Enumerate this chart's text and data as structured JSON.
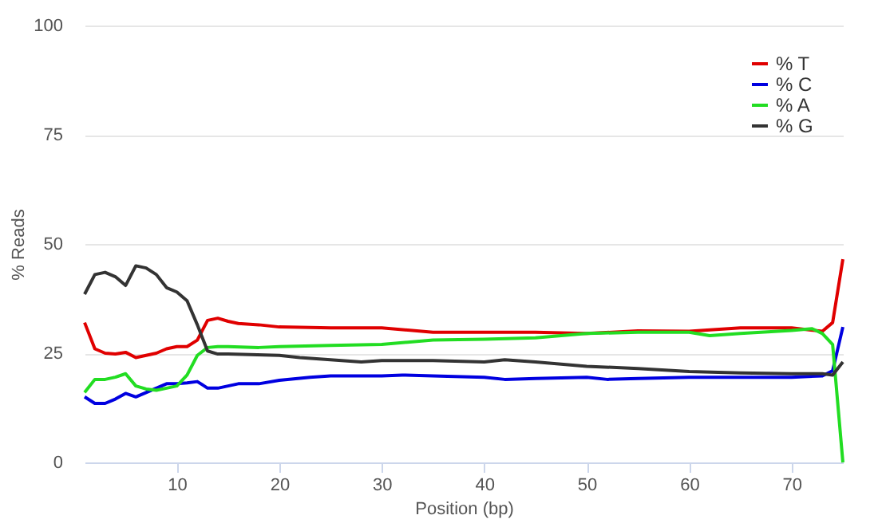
{
  "chart_data": {
    "type": "line",
    "xlabel": "Position (bp)",
    "ylabel": "% Reads",
    "xlim": [
      1,
      75
    ],
    "xticks": [
      10,
      20,
      30,
      40,
      50,
      60,
      70
    ],
    "ylim": [
      0,
      100
    ],
    "yticks": [
      0,
      25,
      50,
      75,
      100
    ],
    "grid": "y",
    "legend": "top right",
    "marker": "none",
    "line_style": "solid",
    "series": [
      {
        "name": "% T",
        "color": "#e00000",
        "x": [
          1,
          2,
          3,
          4,
          5,
          6,
          7,
          8,
          9,
          10,
          11,
          12,
          13,
          14,
          15,
          16,
          18,
          20,
          25,
          30,
          35,
          40,
          45,
          50,
          55,
          60,
          65,
          70,
          73,
          74,
          75
        ],
        "values": [
          32,
          26,
          25,
          24.8,
          25.2,
          24,
          24.5,
          25,
          26,
          26.5,
          26.5,
          28,
          32.5,
          33,
          32.3,
          31.8,
          31.5,
          31,
          30.8,
          30.8,
          29.8,
          29.8,
          29.8,
          29.5,
          30.1,
          30,
          30.8,
          30.8,
          30,
          32,
          46.5
        ]
      },
      {
        "name": "% C",
        "color": "#0000e0",
        "x": [
          1,
          2,
          3,
          4,
          5,
          6,
          7,
          8,
          9,
          10,
          11,
          12,
          13,
          14,
          15,
          16,
          18,
          20,
          23,
          25,
          30,
          32,
          35,
          40,
          42,
          45,
          50,
          52,
          55,
          60,
          65,
          70,
          73,
          74,
          75
        ],
        "values": [
          15,
          13.5,
          13.5,
          14.5,
          15.8,
          15,
          16,
          17,
          18,
          18,
          18.2,
          18.5,
          17,
          17,
          17.5,
          18,
          18,
          18.8,
          19.5,
          19.8,
          19.8,
          20,
          19.8,
          19.5,
          19,
          19.2,
          19.5,
          19,
          19.2,
          19.5,
          19.5,
          19.5,
          19.8,
          21,
          31
        ]
      },
      {
        "name": "% A",
        "color": "#22dd22",
        "x": [
          1,
          2,
          3,
          4,
          5,
          6,
          7,
          8,
          9,
          10,
          11,
          12,
          13,
          14,
          15,
          18,
          20,
          25,
          30,
          35,
          40,
          45,
          50,
          55,
          60,
          62,
          65,
          70,
          72,
          73,
          74,
          75
        ],
        "values": [
          16,
          19,
          19,
          19.5,
          20.3,
          17.5,
          16.8,
          16.5,
          17,
          17.5,
          20,
          24.5,
          26.3,
          26.5,
          26.5,
          26.3,
          26.5,
          26.8,
          27,
          28,
          28.2,
          28.5,
          29.5,
          29.8,
          29.8,
          29,
          29.5,
          30.2,
          30.6,
          29.5,
          27,
          0
        ]
      },
      {
        "name": "% G",
        "color": "#333333",
        "x": [
          1,
          2,
          3,
          4,
          5,
          6,
          7,
          8,
          9,
          10,
          11,
          12,
          13,
          14,
          15,
          20,
          22,
          25,
          28,
          30,
          35,
          40,
          42,
          45,
          50,
          55,
          60,
          65,
          70,
          73,
          74,
          75
        ],
        "values": [
          38.5,
          43,
          43.5,
          42.5,
          40.5,
          45,
          44.5,
          43,
          40,
          39,
          37,
          31.5,
          25.5,
          24.8,
          24.8,
          24.5,
          24,
          23.5,
          23,
          23.3,
          23.3,
          23,
          23.5,
          23,
          22,
          21.5,
          20.8,
          20.5,
          20.3,
          20.3,
          20,
          23
        ]
      }
    ]
  }
}
